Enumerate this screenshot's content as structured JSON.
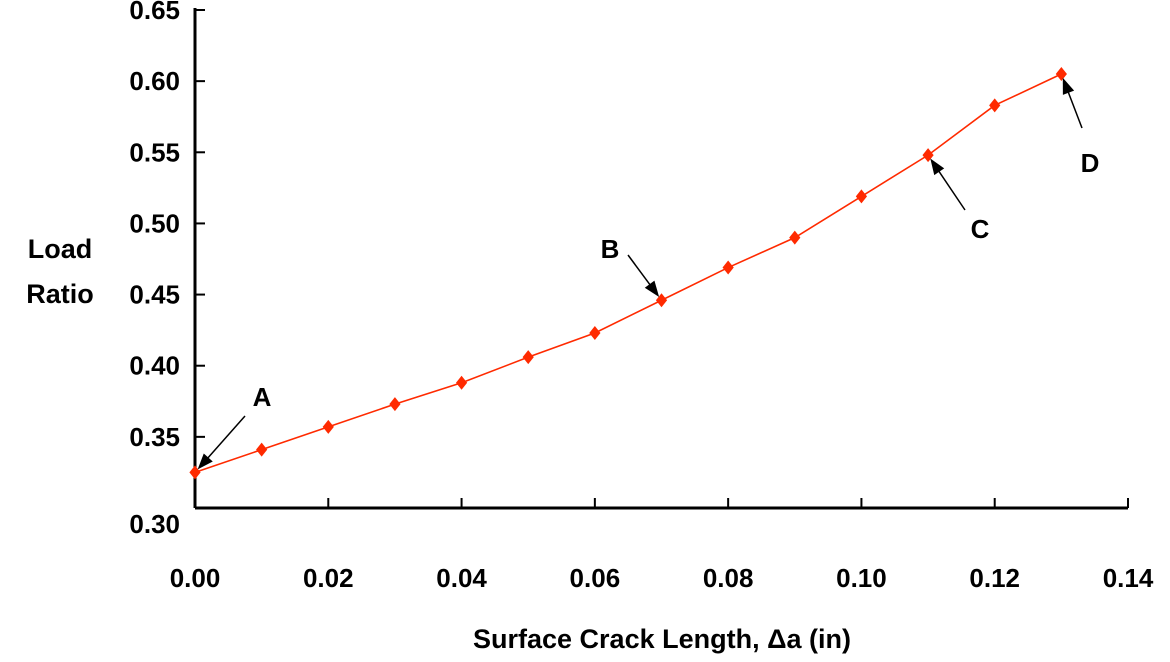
{
  "chart_data": {
    "type": "line",
    "title": "",
    "xlabel": "Surface Crack Length, Δa (in)",
    "ylabel_lines": [
      "Load",
      "Ratio"
    ],
    "xlim": [
      0,
      0.14
    ],
    "ylim": [
      0.3,
      0.65
    ],
    "x_ticks": [
      "0.00",
      "0.02",
      "0.04",
      "0.06",
      "0.08",
      "0.10",
      "0.12",
      "0.14"
    ],
    "y_ticks": [
      "0.30",
      "0.35",
      "0.40",
      "0.45",
      "0.50",
      "0.55",
      "0.60",
      "0.65"
    ],
    "grid": false,
    "series": [
      {
        "color": "#ff2a00",
        "marker": "diamond",
        "x": [
          0.0,
          0.01,
          0.02,
          0.03,
          0.04,
          0.05,
          0.06,
          0.07,
          0.08,
          0.09,
          0.1,
          0.11,
          0.12,
          0.13
        ],
        "y": [
          0.325,
          0.341,
          0.357,
          0.373,
          0.388,
          0.406,
          0.423,
          0.446,
          0.469,
          0.49,
          0.519,
          0.548,
          0.583,
          0.605
        ]
      }
    ],
    "annotations": [
      {
        "label": "A",
        "x": 0.0,
        "y": 0.325
      },
      {
        "label": "B",
        "x": 0.07,
        "y": 0.446
      },
      {
        "label": "C",
        "x": 0.11,
        "y": 0.548
      },
      {
        "label": "D",
        "x": 0.13,
        "y": 0.605
      }
    ]
  }
}
